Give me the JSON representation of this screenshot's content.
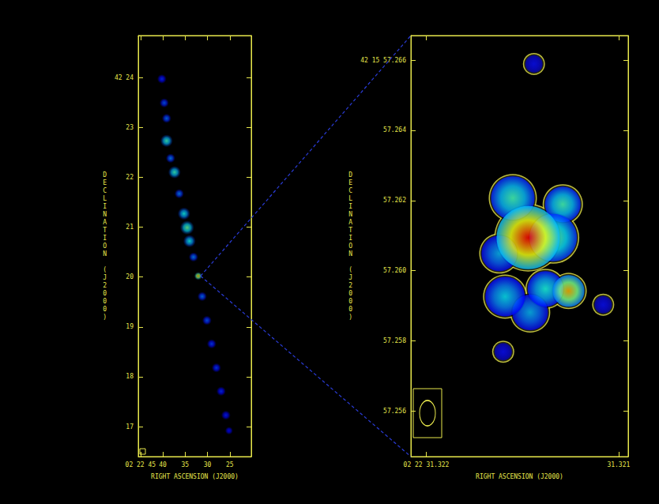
{
  "chart_data": [
    {
      "type": "image",
      "xlabel": "RIGHT ASCENSION (J2000)",
      "ylabel": "DECLINATION (J2000)",
      "xlim": [
        45.5,
        20.2
      ],
      "ylim": [
        16.4,
        24.84
      ],
      "xticks": [
        {
          "value": 45,
          "label": "02 22 45"
        },
        40,
        35,
        30,
        25
      ],
      "yticks": [
        17,
        18,
        19,
        20,
        21,
        22,
        23,
        {
          "value": 24,
          "label": "42 24"
        }
      ],
      "x": [
        40.22,
        39.69,
        39.16,
        39.16,
        38.27,
        37.39,
        36.33,
        35.27,
        34.56,
        34.03,
        33.14,
        32.08,
        31.19,
        30.13,
        29.07,
        28.01,
        26.95,
        25.88,
        25.18
      ],
      "y": [
        23.97,
        23.49,
        23.18,
        22.73,
        22.38,
        22.1,
        21.67,
        21.27,
        20.99,
        20.72,
        20.4,
        20.02,
        19.61,
        19.13,
        18.66,
        18.18,
        17.71,
        17.23,
        16.92
      ],
      "intensity": [
        0.2,
        0.25,
        0.28,
        0.5,
        0.3,
        0.5,
        0.3,
        0.45,
        0.55,
        0.45,
        0.3,
        0.8,
        0.28,
        0.25,
        0.22,
        0.22,
        0.2,
        0.18,
        0.15
      ],
      "size": [
        12,
        12,
        12,
        16,
        12,
        16,
        12,
        16,
        18,
        16,
        12,
        10,
        12,
        12,
        12,
        12,
        12,
        12,
        10
      ]
    },
    {
      "type": "contour",
      "xlabel": "RIGHT ASCENSION (J2000)",
      "ylabel": "DECLINATION (J2000)",
      "xlim": [
        31.32208,
        31.32095
      ],
      "ylim": [
        57.2547,
        57.2667
      ],
      "xticks": [
        {
          "value": 31.322,
          "label": "02 22 31.322"
        },
        31.321
      ],
      "yticks": [
        57.256,
        57.258,
        {
          "value": 57.26,
          "label": "57.260"
        },
        57.262,
        57.264,
        {
          "value": 57.266,
          "label": "42 15 57.266"
        }
      ],
      "x": [
        31.32144,
        31.32108,
        31.3216,
        31.32162,
        31.32146,
        31.32159,
        31.32138,
        31.32129,
        31.32155,
        31.32134,
        31.32126,
        31.32147
      ],
      "y": [
        57.26589,
        57.25903,
        57.25769,
        57.26049,
        57.25881,
        57.25926,
        57.25948,
        57.26189,
        57.26207,
        57.26094,
        57.25942,
        57.26094
      ],
      "intensity": [
        0.15,
        0.15,
        0.15,
        0.35,
        0.35,
        0.4,
        0.45,
        0.5,
        0.5,
        0.55,
        0.8,
        1.0
      ],
      "size": [
        22,
        22,
        22,
        45,
        45,
        50,
        45,
        45,
        55,
        60,
        40,
        80
      ]
    }
  ]
}
